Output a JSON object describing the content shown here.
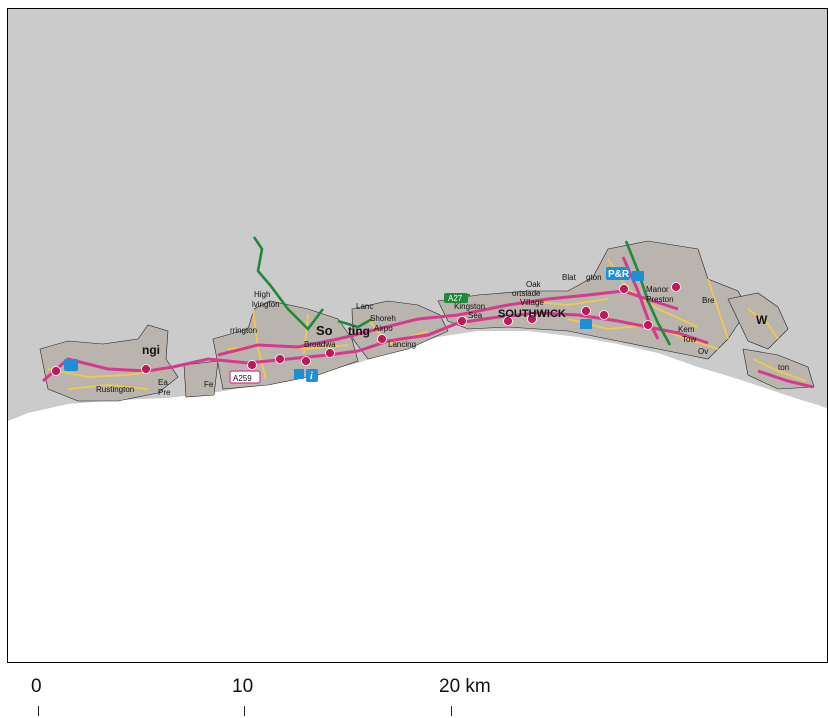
{
  "map": {
    "colors": {
      "sea": "#cbcbcb",
      "land": "#ffffff",
      "urban": "#b9b4ad",
      "primary_road": "#d63a8c",
      "secondary_road": "#f2c94c",
      "green_route": "#1f8a3b",
      "station": "#c2185b",
      "info_blue": "#1d8fd6"
    },
    "places": [
      {
        "id": "rustington",
        "label": "Rustington"
      },
      {
        "id": "angmering",
        "label": "ngi"
      },
      {
        "id": "ea",
        "label": "Ea"
      },
      {
        "id": "pre",
        "label": "Pre"
      },
      {
        "id": "fe",
        "label": "Fe"
      },
      {
        "id": "high",
        "label": "High"
      },
      {
        "id": "salvington",
        "label": "lvington"
      },
      {
        "id": "durrington",
        "label": "rrington"
      },
      {
        "id": "so",
        "label": "So"
      },
      {
        "id": "broadwater",
        "label": "Broadwa"
      },
      {
        "id": "lancing",
        "label": "Lanc"
      },
      {
        "id": "ting",
        "label": "ting"
      },
      {
        "id": "shoreham",
        "label": "Shoreh"
      },
      {
        "id": "airport",
        "label": "Airpo"
      },
      {
        "id": "lancing2",
        "label": "Lancing"
      },
      {
        "id": "kingston",
        "label": "Kingston"
      },
      {
        "id": "sea",
        "label": "Sea"
      },
      {
        "id": "southwick",
        "label": "SOUTHWICK"
      },
      {
        "id": "oak",
        "label": "Oak"
      },
      {
        "id": "portslade",
        "label": "ortslade"
      },
      {
        "id": "village",
        "label": "Village"
      },
      {
        "id": "blatchington",
        "label": "Blat"
      },
      {
        "id": "gton",
        "label": "gton"
      },
      {
        "id": "manor",
        "label": "Manor"
      },
      {
        "id": "preston",
        "label": "Preston"
      },
      {
        "id": "kemp",
        "label": "Kem"
      },
      {
        "id": "town",
        "label": "Tow"
      },
      {
        "id": "ov",
        "label": "Ov"
      },
      {
        "id": "w",
        "label": "W"
      },
      {
        "id": "saltdean",
        "label": "ton"
      },
      {
        "id": "bre",
        "label": "Bre"
      }
    ],
    "road_labels": [
      {
        "id": "a259",
        "label": "A259"
      },
      {
        "id": "a27",
        "label": "A27"
      }
    ],
    "icons": [
      {
        "id": "park-and-ride",
        "label": "P&R"
      },
      {
        "id": "info",
        "label": "i"
      }
    ]
  },
  "scale_bar": {
    "ticks": [
      "0",
      "10",
      "20 km"
    ]
  }
}
